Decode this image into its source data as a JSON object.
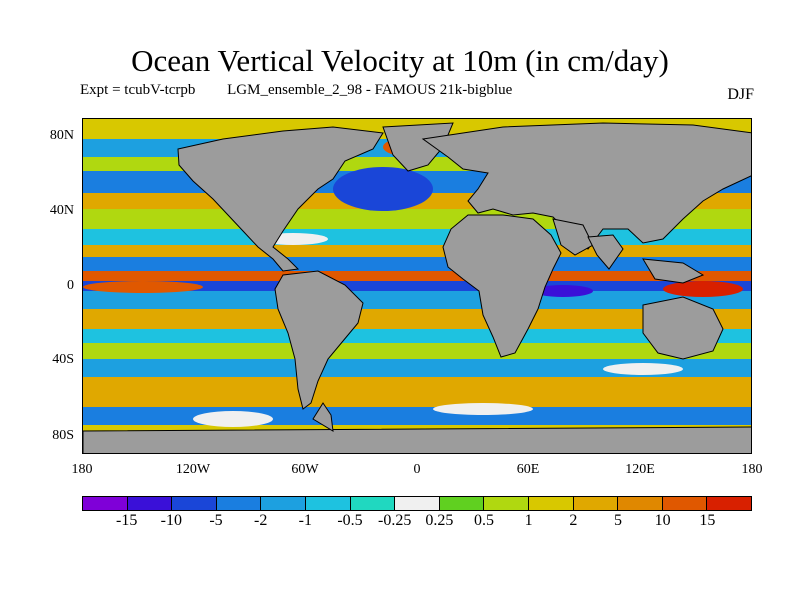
{
  "title": "Ocean Vertical Velocity at 10m (in cm/day)",
  "subtitle": {
    "expt": "Expt = tcubV-tcrpb",
    "ensemble": "LGM_ensemble_2_98 - FAMOUS 21k-bigblue",
    "season": "DJF"
  },
  "map": {
    "projection": "cylindrical equidistant",
    "land_color": "#9c9c9c",
    "lat_labels": [
      "80N",
      "40N",
      "0",
      "40S",
      "80S"
    ],
    "lon_labels": [
      "180",
      "120W",
      "60W",
      "0",
      "60E",
      "120E",
      "180"
    ]
  },
  "colorbar": {
    "colors": [
      "#7f00d8",
      "#3a10d8",
      "#1a46d8",
      "#1a7ee0",
      "#1da0e0",
      "#1ec2e0",
      "#20d8c0",
      "#f0f0f0",
      "#60d020",
      "#b0d810",
      "#d8c800",
      "#e0a800",
      "#e08800",
      "#e05800",
      "#d82000"
    ],
    "labels": [
      "-15",
      "-10",
      "-5",
      "-2",
      "-1",
      "-0.5",
      "-0.25",
      "0.25",
      "0.5",
      "1",
      "2",
      "5",
      "10",
      "15"
    ]
  }
}
